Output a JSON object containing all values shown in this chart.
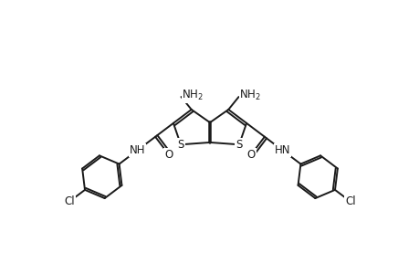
{
  "bg_color": "#ffffff",
  "line_color": "#1a1a1a",
  "line_width": 1.4,
  "font_size": 8.5,
  "figsize": [
    4.6,
    3.0
  ],
  "dpi": 100,
  "xlim": [
    0,
    46
  ],
  "ylim": [
    0,
    30
  ]
}
